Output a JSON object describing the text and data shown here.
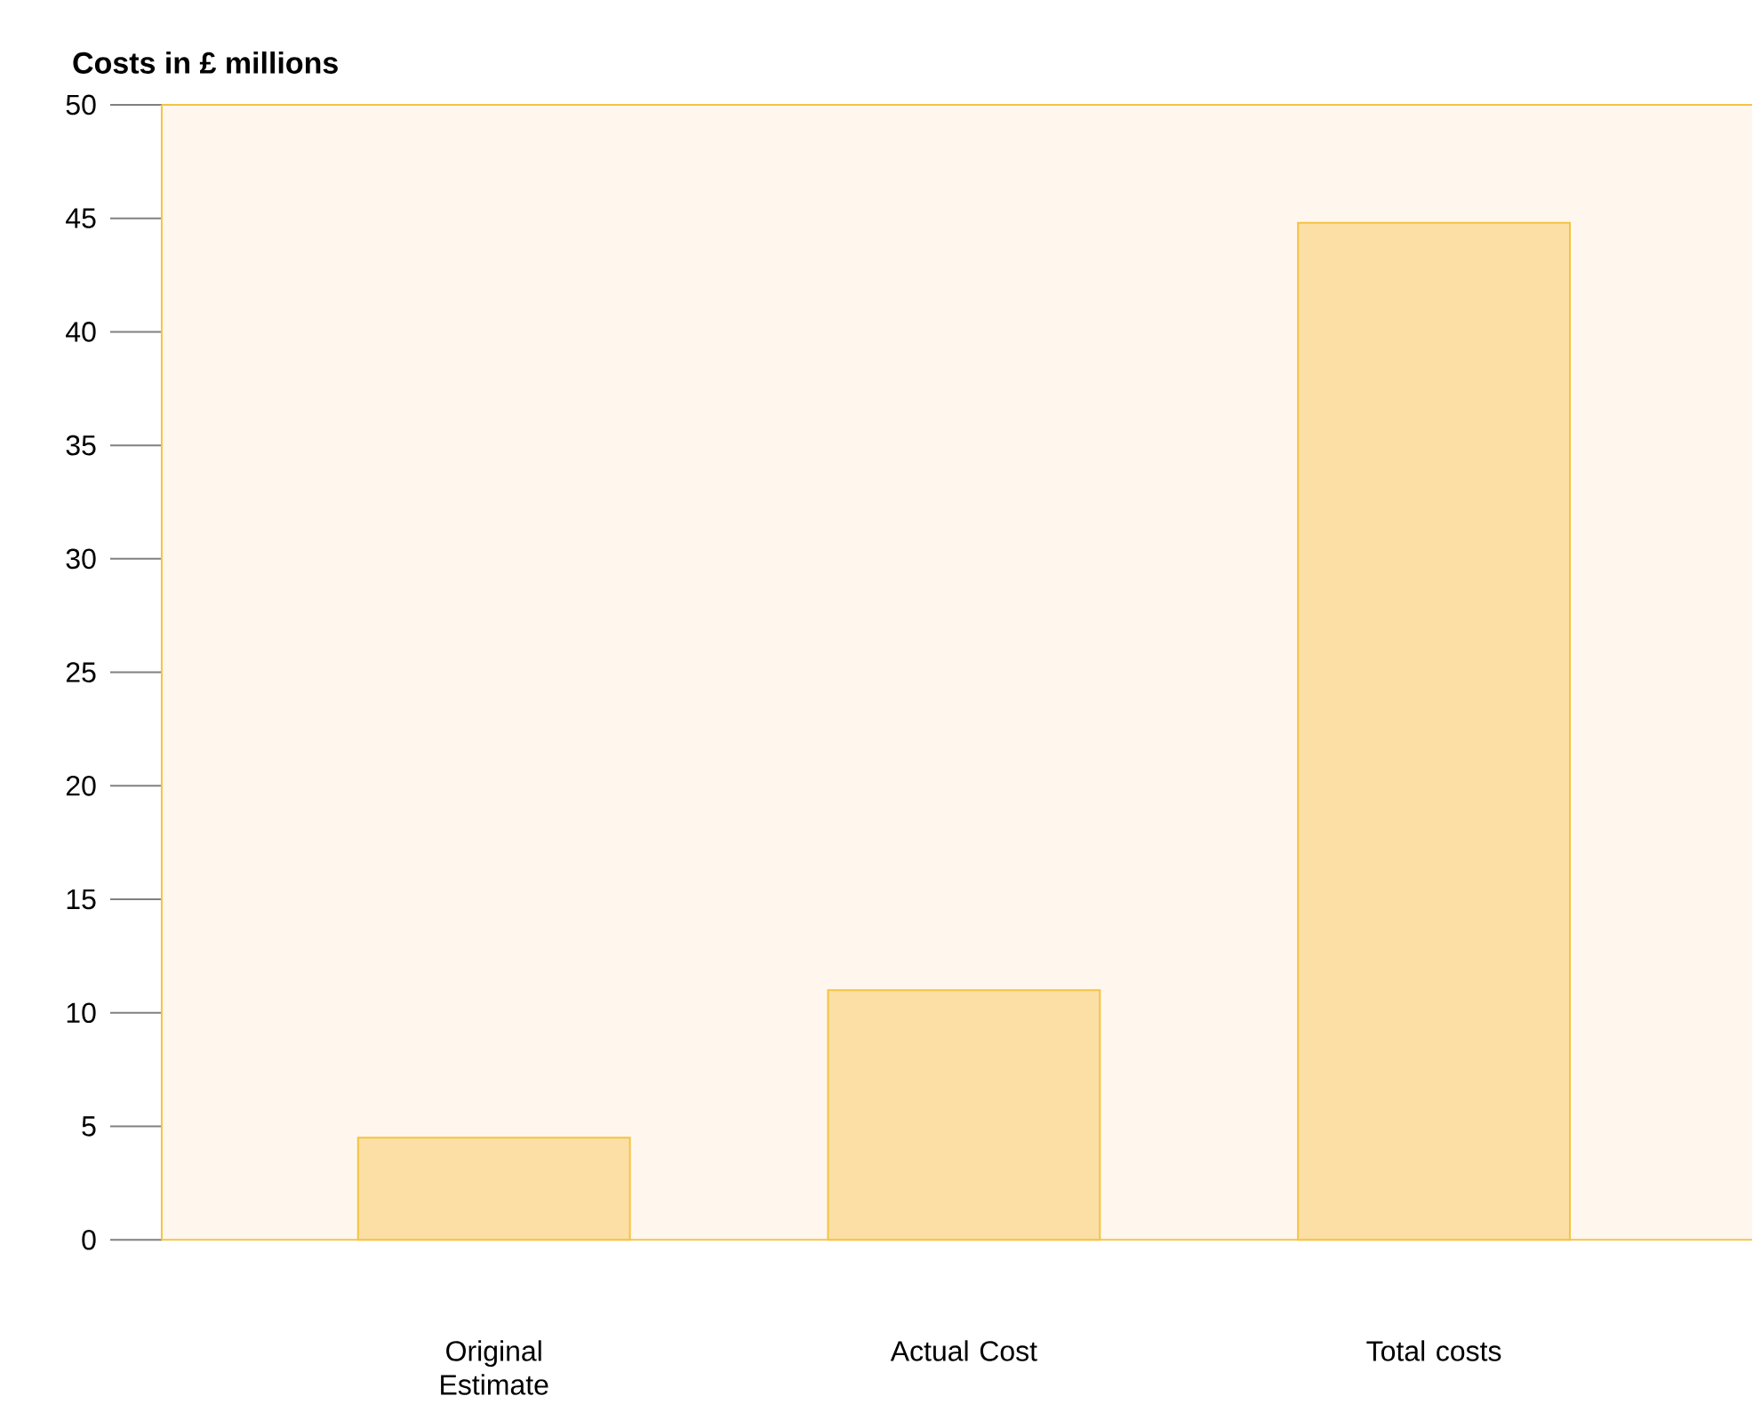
{
  "chart_data": {
    "type": "bar",
    "ylabel": "Costs in £ millions",
    "categories": [
      "Original Estimate",
      "Actual Cost",
      "Total costs"
    ],
    "values": [
      4.5,
      11.0,
      44.8
    ],
    "color": "#fbdfa5",
    "ylim": [
      0,
      50
    ],
    "yticks": [
      0,
      5,
      10,
      15,
      20,
      25,
      30,
      35,
      40,
      45,
      50
    ]
  }
}
